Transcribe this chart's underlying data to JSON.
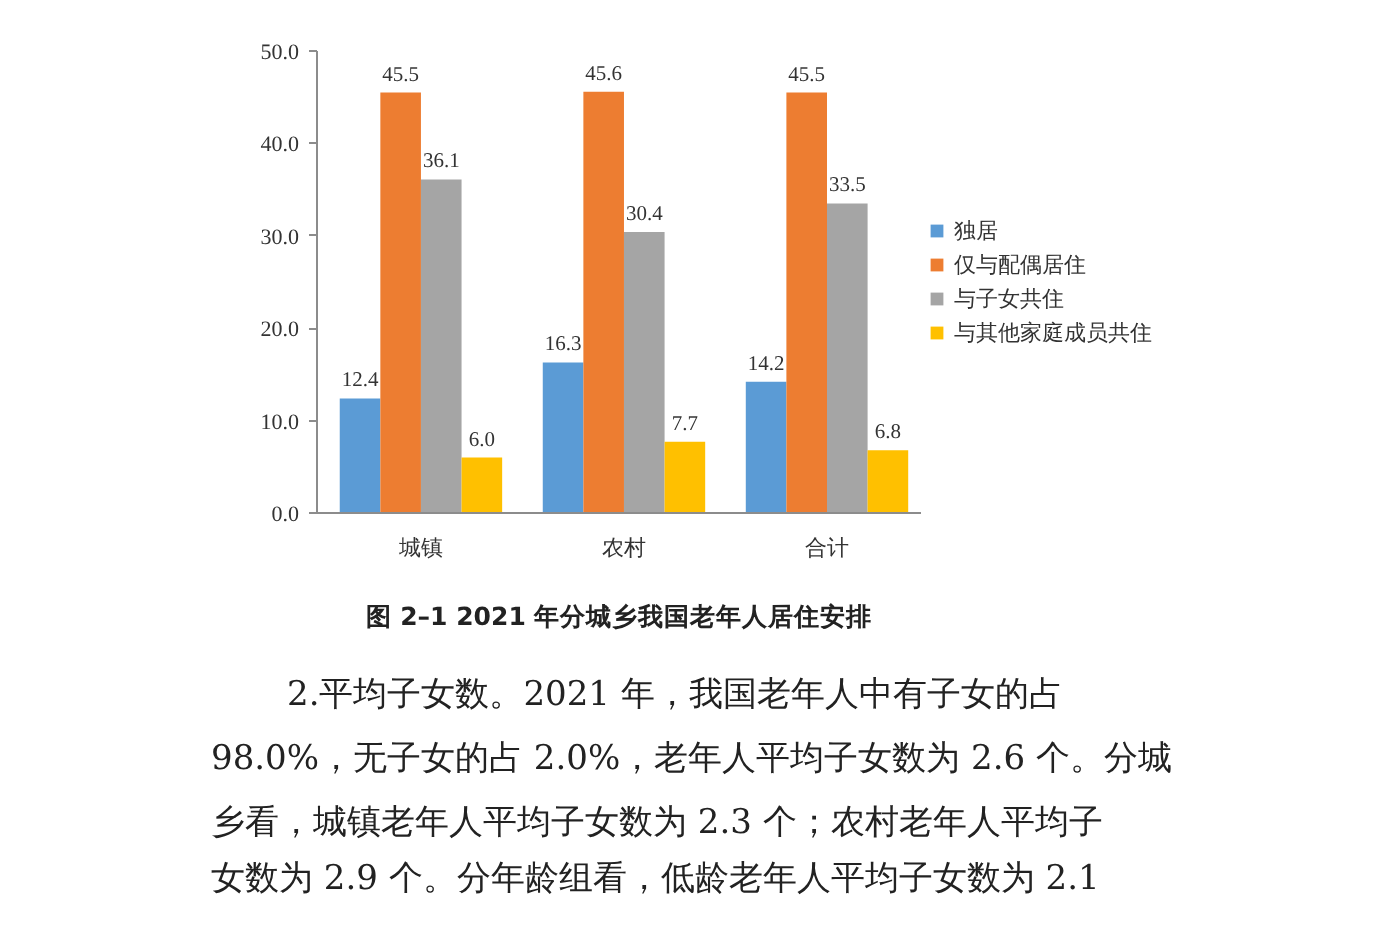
{
  "chart_data": {
    "type": "bar",
    "title": "图 2–1 2021 年分城乡我国老年人居住安排",
    "categories": [
      "城镇",
      "农村",
      "合计"
    ],
    "series": [
      {
        "name": "独居",
        "color": "#5b9bd5",
        "values": [
          12.4,
          16.3,
          14.2
        ],
        "value_labels": [
          "12.4",
          "16.3",
          "14.2"
        ]
      },
      {
        "name": "仅与配偶居住",
        "color": "#ed7d31",
        "values": [
          45.5,
          45.6,
          45.5
        ],
        "value_labels": [
          "45.5",
          "45.6",
          "45.5"
        ]
      },
      {
        "name": "与子女共住",
        "color": "#a5a5a5",
        "values": [
          36.1,
          30.4,
          33.5
        ],
        "value_labels": [
          "36.1",
          "30.4",
          "33.5"
        ]
      },
      {
        "name": "与其他家庭成员共住",
        "color": "#ffc000",
        "values": [
          6.0,
          7.7,
          6.8
        ],
        "value_labels": [
          "6.0",
          "7.7",
          "6.8"
        ]
      }
    ],
    "ylim": [
      0,
      50
    ],
    "yticks": [
      {
        "value": 0,
        "label": "0.0"
      },
      {
        "value": 10,
        "label": "10.0"
      },
      {
        "value": 20,
        "label": "20.0"
      },
      {
        "value": 30,
        "label": "30.0"
      },
      {
        "value": 40,
        "label": "40.0"
      },
      {
        "value": 50,
        "label": "50.0"
      }
    ],
    "legend": "right",
    "annotations": [
      "2.平均子女数。2021 年，我国老年人中有子女的占",
      "98.0%，无子女的占 2.0%，老年人平均子女数为 2.6 个。分城",
      "乡看，城镇老年人平均子女数为 2.3 个；农村老年人平均子",
      "女数为 2.9 个。分年龄组看，低龄老年人平均子女数为 2.1"
    ]
  }
}
